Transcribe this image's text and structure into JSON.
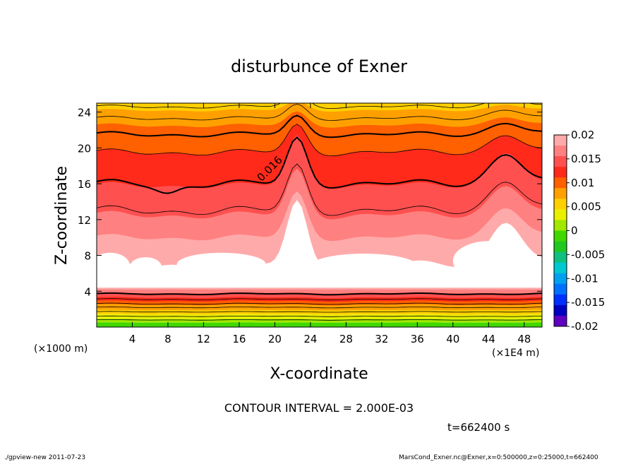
{
  "chart_data": {
    "type": "contour",
    "title": "disturbunce of Exner",
    "xlabel": "X-coordinate",
    "ylabel": "Z-coordinate",
    "x_unit_note": "(×1E4 m)",
    "y_unit_note": "(×1000 m)",
    "xlim": [
      0,
      50
    ],
    "ylim": [
      0,
      25
    ],
    "x_ticks": [
      4,
      8,
      12,
      16,
      20,
      24,
      28,
      32,
      36,
      40,
      44,
      48
    ],
    "y_ticks": [
      4,
      8,
      12,
      16,
      20,
      24
    ],
    "contour_label": "0.016",
    "contour_interval_text": "CONTOUR INTERVAL = 2.000E-03",
    "time_text": "t=662400 s",
    "colorbar": {
      "ticks": [
        "0.02",
        "0.015",
        "0.01",
        "0.005",
        "0",
        "-0.005",
        "-0.01",
        "-0.015",
        "-0.02"
      ],
      "colors": [
        "#ffaaaa",
        "#ff8080",
        "#ff5050",
        "#ff2a1a",
        "#ff6000",
        "#ffa000",
        "#ffd000",
        "#e8f000",
        "#a0e800",
        "#40d800",
        "#20c820",
        "#10c080",
        "#00c8d0",
        "#00a0f0",
        "#0070ff",
        "#0030ff",
        "#0000c0",
        "#6000c0"
      ]
    }
  },
  "footer": {
    "left": "./gpview-new  2011-07-23",
    "right": "MarsCond_Exner.nc@Exner,x=0:500000,z=0:25000,t=662400"
  }
}
